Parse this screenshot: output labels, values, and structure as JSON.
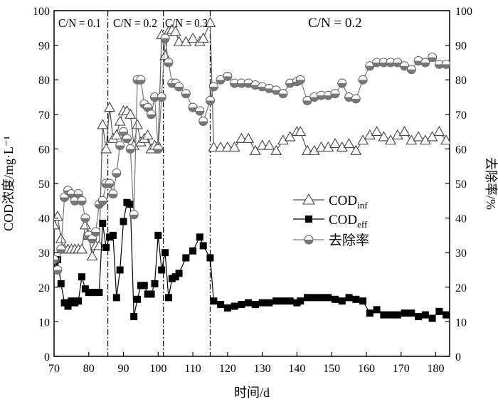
{
  "chart_data": {
    "type": "line",
    "xlabel": "时间/d",
    "ylabel_left": "COD浓度/mg·L⁻¹",
    "ylabel_right": "去除率/%",
    "xlim": [
      70,
      184
    ],
    "ylim_left": [
      0,
      100
    ],
    "ylim_right": [
      0,
      100
    ],
    "x_ticks": [
      70,
      80,
      90,
      100,
      110,
      120,
      130,
      140,
      150,
      160,
      170,
      180
    ],
    "y_ticks_left": [
      0,
      10,
      20,
      30,
      40,
      50,
      60,
      70,
      80,
      90,
      100
    ],
    "y_ticks_right": [
      0,
      10,
      20,
      30,
      40,
      50,
      60,
      70,
      80,
      90,
      100
    ],
    "grid": false,
    "legend_position": "center-right",
    "phase_lines": [
      85.5,
      101.5,
      115
    ],
    "phases": [
      {
        "label": "C/N = 0.1",
        "size": "small"
      },
      {
        "label": "C/N = 0.2",
        "size": "small"
      },
      {
        "label": "C/N = 0.3",
        "size": "small"
      },
      {
        "label": "C/N = 0.2",
        "size": "large"
      }
    ],
    "series": [
      {
        "name": "COD",
        "name_sub": "inf",
        "axis": "left",
        "marker": "open-triangle",
        "x": [
          70,
          71,
          72,
          73,
          74,
          75,
          76,
          77,
          78,
          79,
          80,
          81,
          82,
          83,
          84,
          85,
          86,
          87,
          88,
          89,
          90,
          91,
          92,
          93,
          94,
          95,
          96,
          97,
          98,
          99,
          100,
          101,
          102,
          103,
          104,
          105,
          106,
          108,
          110,
          112,
          113,
          115,
          116,
          118,
          120,
          122,
          124,
          126,
          128,
          130,
          132,
          134,
          136,
          138,
          140,
          141,
          143,
          145,
          147,
          149,
          151,
          153,
          155,
          157,
          159,
          161,
          163,
          165,
          167,
          169,
          171,
          173,
          175,
          177,
          179,
          181,
          183
        ],
        "values": [
          38,
          40.5,
          34,
          31,
          31,
          31,
          31,
          31,
          31,
          38,
          35,
          29,
          32,
          32,
          67,
          60,
          72,
          63,
          64,
          68,
          71,
          71,
          70,
          61,
          67,
          62,
          63,
          64,
          60,
          61,
          61,
          93,
          87,
          94,
          94.5,
          94,
          91,
          91,
          92,
          91,
          92,
          96.5,
          60.5,
          60.5,
          60.5,
          60.5,
          63,
          63,
          59.5,
          61,
          61,
          59.5,
          62.5,
          63.5,
          65,
          65,
          59.5,
          59.5,
          60.5,
          60.5,
          61.5,
          60.5,
          61.5,
          59.5,
          62.5,
          64,
          65,
          63.5,
          62.5,
          64,
          65,
          62.5,
          63.5,
          62.5,
          63.5,
          65,
          62.5
        ]
      },
      {
        "name": "COD",
        "name_sub": "eff",
        "axis": "left",
        "marker": "filled-square",
        "x": [
          70,
          71,
          72,
          73,
          74,
          75,
          76,
          77,
          78,
          79,
          80,
          81,
          82,
          83,
          84,
          85,
          86,
          87,
          88,
          89,
          90,
          91,
          92,
          93,
          94,
          95,
          96,
          97,
          98,
          99,
          100,
          101,
          102,
          103,
          104,
          105,
          106,
          108,
          110,
          112,
          113,
          115,
          116,
          118,
          120,
          122,
          124,
          126,
          128,
          130,
          132,
          134,
          136,
          138,
          140,
          141,
          143,
          145,
          147,
          149,
          151,
          153,
          155,
          157,
          159,
          161,
          163,
          165,
          167,
          169,
          171,
          173,
          175,
          177,
          179,
          181,
          183
        ],
        "values": [
          27,
          28,
          21,
          15.5,
          14.5,
          16,
          15.5,
          16,
          23,
          19.5,
          18.5,
          18.5,
          18.5,
          18.5,
          38.5,
          31.5,
          34.5,
          35,
          17,
          25,
          39,
          44.5,
          44,
          11.5,
          16.5,
          20.5,
          20.5,
          18,
          18,
          21,
          35,
          25,
          30,
          17,
          22.5,
          23,
          24,
          28.5,
          30.5,
          34.5,
          32,
          28.5,
          16,
          15,
          14,
          14.5,
          15,
          15.5,
          15,
          15.5,
          15.5,
          16,
          16,
          16,
          15.5,
          16,
          17,
          17,
          17,
          17,
          16.5,
          16,
          17,
          16.5,
          16,
          12.5,
          13.5,
          12,
          12,
          12,
          12.5,
          12.5,
          11.5,
          12,
          11,
          13,
          12
        ]
      },
      {
        "name": "去除率",
        "axis": "right",
        "marker": "half-filled-circle",
        "x": [
          70,
          71,
          72,
          73,
          74,
          75,
          76,
          77,
          78,
          79,
          80,
          81,
          82,
          83,
          84,
          85,
          86,
          87,
          88,
          89,
          90,
          91,
          92,
          93,
          94,
          95,
          96,
          97,
          98,
          99,
          100,
          101,
          102,
          103,
          104,
          105,
          106,
          108,
          110,
          112,
          113,
          115,
          116,
          118,
          120,
          122,
          124,
          126,
          128,
          130,
          132,
          134,
          136,
          138,
          140,
          141,
          143,
          145,
          147,
          149,
          151,
          153,
          155,
          157,
          159,
          161,
          163,
          165,
          167,
          169,
          171,
          173,
          175,
          177,
          179,
          181,
          183
        ],
        "values": [
          28,
          25,
          31,
          46,
          48,
          47,
          45,
          47,
          45,
          40,
          35,
          34,
          36,
          44,
          45,
          50,
          50,
          47,
          53,
          61,
          65,
          63,
          60,
          41,
          80,
          80,
          73,
          72,
          70,
          75,
          60,
          75,
          92,
          85,
          79,
          79,
          78,
          76,
          72,
          71,
          68,
          74,
          78,
          80,
          81,
          79,
          79,
          79,
          78.5,
          78,
          77.5,
          77,
          76,
          79,
          79.5,
          80,
          74,
          75,
          75.5,
          75.5,
          76,
          79,
          75,
          74.5,
          80,
          84,
          85,
          85,
          85,
          85,
          84,
          83,
          85.5,
          85,
          86.5,
          84.5,
          84.5
        ]
      }
    ]
  }
}
